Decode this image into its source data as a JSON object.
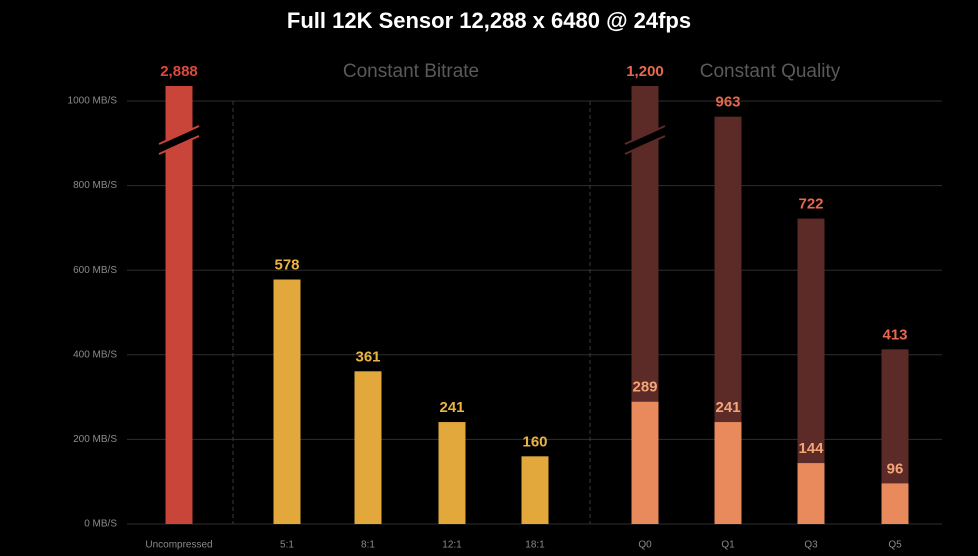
{
  "chart_data": {
    "type": "bar",
    "title": "Full 12K Sensor 12,288 x 6480 @ 24fps",
    "group_labels": [
      {
        "text": "Constant Bitrate",
        "from": 1,
        "to": 4
      },
      {
        "text": "Constant Quality",
        "from": 5,
        "to": 8
      }
    ],
    "categories": [
      "Uncompressed",
      "5:1",
      "8:1",
      "12:1",
      "18:1",
      "Q0",
      "Q1",
      "Q3",
      "Q5"
    ],
    "values": [
      2888,
      578,
      361,
      241,
      160,
      1200,
      963,
      722,
      413
    ],
    "value_labels": [
      "2,888",
      "578",
      "361",
      "241",
      "160",
      "1,200",
      "963",
      "722",
      "413"
    ],
    "colors": [
      "#c9453a",
      "#e2a83c",
      "#e2a83c",
      "#e2a83c",
      "#e2a83c",
      "#5c2a27",
      "#5c2a27",
      "#5c2a27",
      "#5c2a27"
    ],
    "label_colors": [
      "#dc4a3e",
      "#eab442",
      "#eab442",
      "#eab442",
      "#eab442",
      "#e8674d",
      "#e8674d",
      "#e8674d",
      "#e8674d"
    ],
    "overlay_values": [
      null,
      null,
      null,
      null,
      null,
      289,
      241,
      144,
      96
    ],
    "overlay_color": "#e98a5c",
    "overlay_label_color": "#f2a678",
    "ylim": [
      0,
      1000
    ],
    "yticks": [
      {
        "value": 0,
        "label": "0 MB/S"
      },
      {
        "value": 200,
        "label": "200 MB/S"
      },
      {
        "value": 400,
        "label": "400 MB/S"
      },
      {
        "value": 600,
        "label": "600 MB/S"
      },
      {
        "value": 800,
        "label": "800 MB/S"
      },
      {
        "value": 1000,
        "label": "1000 MB/S"
      }
    ],
    "grid": true
  }
}
